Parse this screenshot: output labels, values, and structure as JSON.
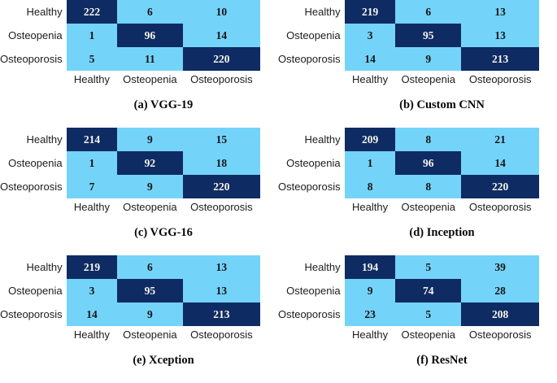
{
  "figure": {
    "type": "confusion-matrix-figure",
    "class_labels": [
      "Healthy",
      "Osteopenia",
      "Osteoporosis"
    ],
    "colors": {
      "diagonal_cell": "#0e2b63",
      "off_diagonal_cell": "#74d3f8",
      "diagonal_text": "#f7f5ee",
      "off_diagonal_text": "#141414"
    }
  },
  "labels": [
    "Healthy",
    "Osteopenia",
    "Osteoporosis"
  ],
  "matrices": [
    {
      "id": "a",
      "caption": "(a) VGG-19",
      "rows": [
        [
          222,
          6,
          10
        ],
        [
          1,
          96,
          14
        ],
        [
          5,
          11,
          220
        ]
      ]
    },
    {
      "id": "b",
      "caption": "(b) Custom CNN",
      "rows": [
        [
          219,
          6,
          13
        ],
        [
          3,
          95,
          13
        ],
        [
          14,
          9,
          213
        ]
      ]
    },
    {
      "id": "c",
      "caption": "(c) VGG-16",
      "rows": [
        [
          214,
          9,
          15
        ],
        [
          1,
          92,
          18
        ],
        [
          7,
          9,
          220
        ]
      ]
    },
    {
      "id": "d",
      "caption": "(d) Inception",
      "rows": [
        [
          209,
          8,
          21
        ],
        [
          1,
          96,
          14
        ],
        [
          8,
          8,
          220
        ]
      ]
    },
    {
      "id": "e",
      "caption": "(e) Xception",
      "rows": [
        [
          219,
          6,
          13
        ],
        [
          3,
          95,
          13
        ],
        [
          14,
          9,
          213
        ]
      ]
    },
    {
      "id": "f",
      "caption": "(f) ResNet",
      "rows": [
        [
          194,
          5,
          39
        ],
        [
          9,
          74,
          28
        ],
        [
          23,
          5,
          208
        ]
      ]
    }
  ],
  "chart_data": [
    {
      "type": "heatmap",
      "title": "(a) VGG-19",
      "x_labels": [
        "Healthy",
        "Osteopenia",
        "Osteoporosis"
      ],
      "y_labels": [
        "Healthy",
        "Osteopenia",
        "Osteoporosis"
      ],
      "values": [
        [
          222,
          6,
          10
        ],
        [
          1,
          96,
          14
        ],
        [
          5,
          11,
          220
        ]
      ]
    },
    {
      "type": "heatmap",
      "title": "(b) Custom CNN",
      "x_labels": [
        "Healthy",
        "Osteopenia",
        "Osteoporosis"
      ],
      "y_labels": [
        "Healthy",
        "Osteopenia",
        "Osteoporosis"
      ],
      "values": [
        [
          219,
          6,
          13
        ],
        [
          3,
          95,
          13
        ],
        [
          14,
          9,
          213
        ]
      ]
    },
    {
      "type": "heatmap",
      "title": "(c) VGG-16",
      "x_labels": [
        "Healthy",
        "Osteopenia",
        "Osteoporosis"
      ],
      "y_labels": [
        "Healthy",
        "Osteopenia",
        "Osteoporosis"
      ],
      "values": [
        [
          214,
          9,
          15
        ],
        [
          1,
          92,
          18
        ],
        [
          7,
          9,
          220
        ]
      ]
    },
    {
      "type": "heatmap",
      "title": "(d) Inception",
      "x_labels": [
        "Healthy",
        "Osteopenia",
        "Osteoporosis"
      ],
      "y_labels": [
        "Healthy",
        "Osteopenia",
        "Osteoporosis"
      ],
      "values": [
        [
          209,
          8,
          21
        ],
        [
          1,
          96,
          14
        ],
        [
          8,
          8,
          220
        ]
      ]
    },
    {
      "type": "heatmap",
      "title": "(e) Xception",
      "x_labels": [
        "Healthy",
        "Osteopenia",
        "Osteoporosis"
      ],
      "y_labels": [
        "Healthy",
        "Osteopenia",
        "Osteoporosis"
      ],
      "values": [
        [
          219,
          6,
          13
        ],
        [
          3,
          95,
          13
        ],
        [
          14,
          9,
          213
        ]
      ]
    },
    {
      "type": "heatmap",
      "title": "(f) ResNet",
      "x_labels": [
        "Healthy",
        "Osteopenia",
        "Osteoporosis"
      ],
      "y_labels": [
        "Healthy",
        "Osteopenia",
        "Osteoporosis"
      ],
      "values": [
        [
          194,
          5,
          39
        ],
        [
          9,
          74,
          28
        ],
        [
          23,
          5,
          208
        ]
      ]
    }
  ]
}
